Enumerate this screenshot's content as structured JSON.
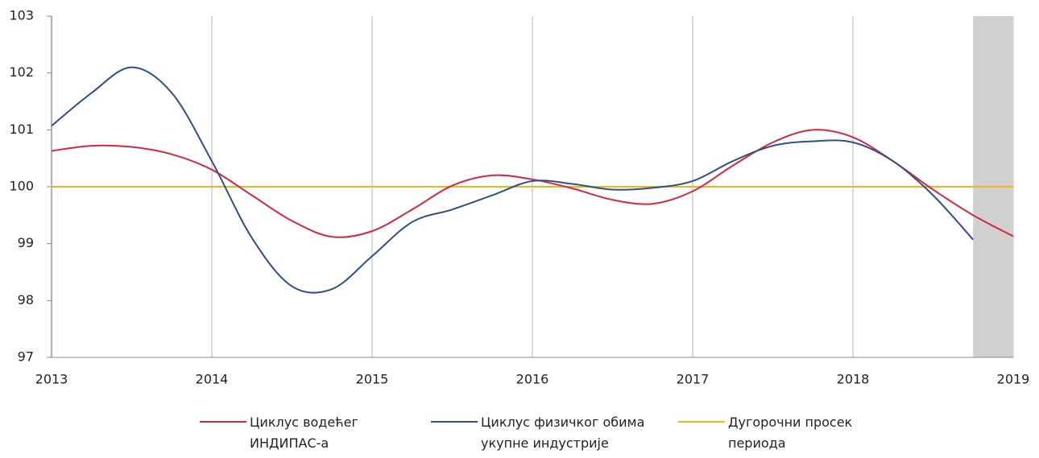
{
  "chart_data": {
    "type": "line",
    "x": [
      2013,
      2013.25,
      2013.5,
      2013.75,
      2014,
      2014.25,
      2014.5,
      2014.75,
      2015,
      2015.25,
      2015.5,
      2015.75,
      2016,
      2016.25,
      2016.5,
      2016.75,
      2017,
      2017.25,
      2017.5,
      2017.75,
      2018,
      2018.25,
      2018.5,
      2018.75,
      2019
    ],
    "series": [
      {
        "name": "Циклус водећег ИНДИПАС-а",
        "color": "#d2283f",
        "values": [
          100.63,
          100.72,
          100.7,
          100.57,
          100.3,
          99.85,
          99.4,
          99.12,
          99.22,
          99.6,
          100.02,
          100.2,
          100.13,
          99.97,
          99.77,
          99.7,
          99.92,
          100.37,
          100.78,
          101.0,
          100.87,
          100.45,
          99.95,
          99.5,
          99.13
        ]
      },
      {
        "name": "Циклус физичког обима укупне индустрије",
        "color": "#2f4f86",
        "values": [
          101.07,
          101.65,
          102.1,
          101.65,
          100.45,
          99.1,
          98.25,
          98.2,
          98.78,
          99.38,
          99.6,
          99.85,
          100.1,
          100.05,
          99.95,
          99.98,
          100.1,
          100.45,
          100.72,
          100.8,
          100.78,
          100.45,
          99.85,
          99.07,
          null
        ]
      },
      {
        "name": "Дугорочни просек периода",
        "color": "#f0b419",
        "values": [
          100,
          100,
          100,
          100,
          100,
          100,
          100,
          100,
          100,
          100,
          100,
          100,
          100,
          100,
          100,
          100,
          100,
          100,
          100,
          100,
          100,
          100,
          100,
          100,
          100
        ]
      }
    ],
    "xlim": [
      2013,
      2019
    ],
    "xticks": [
      2013,
      2014,
      2015,
      2016,
      2017,
      2018,
      2019
    ],
    "ylim": [
      97,
      103
    ],
    "yticks": [
      97,
      98,
      99,
      100,
      101,
      102,
      103
    ],
    "shaded_xrange": [
      2018.75,
      2019
    ],
    "grid": true
  }
}
